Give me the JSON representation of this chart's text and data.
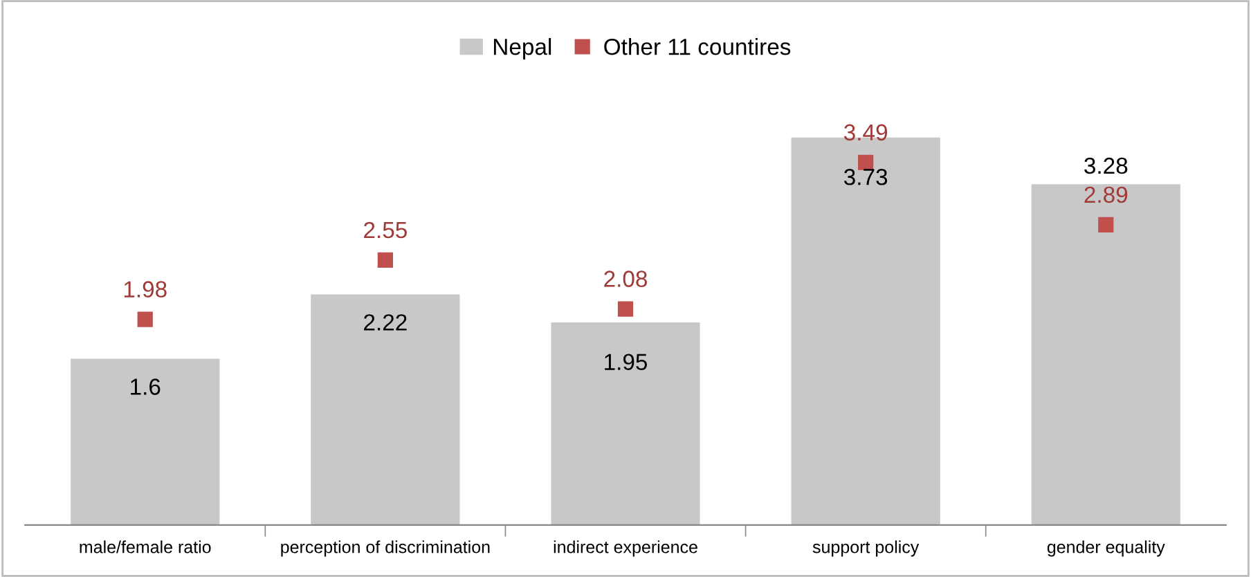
{
  "chart_data": {
    "type": "bar",
    "categories": [
      "male/female ratio",
      "perception of discrimination",
      "indirect experience",
      "support policy",
      "gender equality"
    ],
    "series": [
      {
        "name": "Nepal",
        "color": "#c8c8c8",
        "values": [
          1.6,
          2.22,
          1.95,
          3.73,
          3.28
        ]
      },
      {
        "name": "Other 11 countires",
        "color": "#c0504d",
        "type": "scatter",
        "marker": "square",
        "values": [
          1.98,
          2.55,
          2.08,
          3.49,
          2.89
        ]
      }
    ],
    "tick_labels": "x",
    "data_labels": true,
    "legend": "top",
    "grid": false
  }
}
